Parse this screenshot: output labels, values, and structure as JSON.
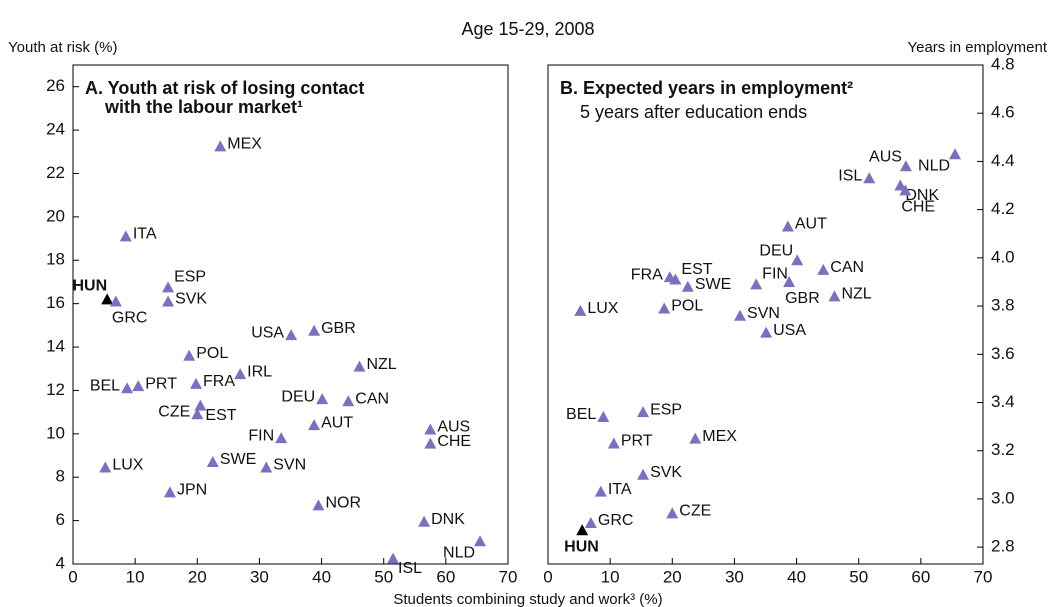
{
  "title": "Age 15-29, 2008",
  "xlabel": "Students combining study and work³ (%)",
  "chart_data": [
    {
      "type": "scatter",
      "title": [
        "A. Youth at risk of losing contact",
        "with the labour market¹"
      ],
      "ylabel": "Youth at risk (%)",
      "labels": [
        "MEX",
        "ITA",
        "ESP",
        "HUN",
        "GRC",
        "SVK",
        "USA",
        "GBR",
        "POL",
        "NZL",
        "IRL",
        "BEL",
        "PRT",
        "FRA",
        "DEU",
        "CAN",
        "EST",
        "CZE",
        "AUS",
        "AUT",
        "FIN",
        "CHE",
        "SWE",
        "SVN",
        "LUX",
        "JPN",
        "NOR",
        "DNK",
        "NLD",
        "ISL"
      ],
      "x": [
        23.7,
        8.5,
        15.3,
        5.5,
        6.9,
        15.3,
        35.1,
        38.8,
        18.7,
        46.1,
        26.9,
        8.7,
        10.5,
        19.8,
        40.1,
        44.3,
        20.5,
        20.0,
        57.5,
        38.8,
        33.5,
        57.5,
        22.5,
        31.1,
        5.2,
        15.6,
        39.5,
        56.5,
        65.5,
        51.5
      ],
      "y": [
        23.25,
        19.1,
        16.75,
        16.2,
        16.1,
        16.1,
        14.55,
        14.75,
        13.6,
        13.1,
        12.75,
        12.1,
        12.2,
        12.3,
        11.6,
        11.5,
        11.3,
        10.9,
        10.2,
        10.4,
        9.8,
        9.55,
        8.7,
        8.45,
        8.45,
        7.3,
        6.7,
        5.95,
        5.05,
        4.25
      ],
      "colors": [
        "#7a70c2",
        "#7a70c2",
        "#7a70c2",
        "#000000",
        "#7a70c2",
        "#7a70c2",
        "#7a70c2",
        "#7a70c2",
        "#7a70c2",
        "#7a70c2",
        "#7a70c2",
        "#7a70c2",
        "#7a70c2",
        "#7a70c2",
        "#7a70c2",
        "#7a70c2",
        "#7a70c2",
        "#7a70c2",
        "#7a70c2",
        "#7a70c2",
        "#7a70c2",
        "#7a70c2",
        "#7a70c2",
        "#7a70c2",
        "#7a70c2",
        "#7a70c2",
        "#7a70c2",
        "#7a70c2",
        "#7a70c2",
        "#7a70c2"
      ],
      "xlim": [
        0,
        70
      ],
      "xticks": [
        0,
        10,
        20,
        30,
        40,
        50,
        60,
        70
      ],
      "ylim": [
        4,
        27
      ],
      "yticks": [
        4,
        6,
        8,
        10,
        12,
        14,
        16,
        18,
        20,
        22,
        24,
        26
      ]
    },
    {
      "type": "scatter",
      "title": [
        "B. Expected years in employment²"
      ],
      "subtitle": "5 years after education ends",
      "ylabel": "Years in employment",
      "labels": [
        "AUS",
        "NLD",
        "ISL",
        "DNK",
        "CHE",
        "AUT",
        "DEU",
        "CAN",
        "FRA",
        "EST",
        "SWE",
        "FIN",
        "GBR",
        "NZL",
        "LUX",
        "POL",
        "SVN",
        "USA",
        "BEL",
        "ESP",
        "MEX",
        "PRT",
        "SVK",
        "ITA",
        "CZE",
        "GRC",
        "HUN"
      ],
      "x": [
        57.6,
        65.5,
        51.7,
        56.7,
        57.5,
        38.6,
        40.1,
        44.3,
        19.6,
        20.5,
        22.5,
        33.5,
        38.8,
        46.1,
        5.2,
        18.7,
        30.9,
        35.1,
        8.9,
        15.3,
        23.7,
        10.6,
        15.3,
        8.5,
        20.0,
        6.9,
        5.5
      ],
      "y": [
        4.38,
        4.43,
        4.33,
        4.3,
        4.28,
        4.13,
        3.99,
        3.95,
        3.92,
        3.91,
        3.88,
        3.89,
        3.9,
        3.84,
        3.78,
        3.79,
        3.76,
        3.69,
        3.34,
        3.36,
        3.25,
        3.23,
        3.1,
        3.03,
        2.94,
        2.9,
        2.87
      ],
      "colors": [
        "#7a70c2",
        "#7a70c2",
        "#7a70c2",
        "#7a70c2",
        "#7a70c2",
        "#7a70c2",
        "#7a70c2",
        "#7a70c2",
        "#7a70c2",
        "#7a70c2",
        "#7a70c2",
        "#7a70c2",
        "#7a70c2",
        "#7a70c2",
        "#7a70c2",
        "#7a70c2",
        "#7a70c2",
        "#7a70c2",
        "#7a70c2",
        "#7a70c2",
        "#7a70c2",
        "#7a70c2",
        "#7a70c2",
        "#7a70c2",
        "#7a70c2",
        "#7a70c2",
        "#000000"
      ],
      "xlim": [
        0,
        70
      ],
      "xticks": [
        0,
        10,
        20,
        30,
        40,
        50,
        60,
        70
      ],
      "ylim": [
        2.73,
        4.8
      ],
      "yticks": [
        2.8,
        {
          "value": 3,
          "label": "3.0"
        },
        3.2,
        3.4,
        3.6,
        3.8,
        {
          "value": 4,
          "label": "4.0"
        },
        4.2,
        4.4,
        4.6,
        4.8
      ]
    }
  ]
}
